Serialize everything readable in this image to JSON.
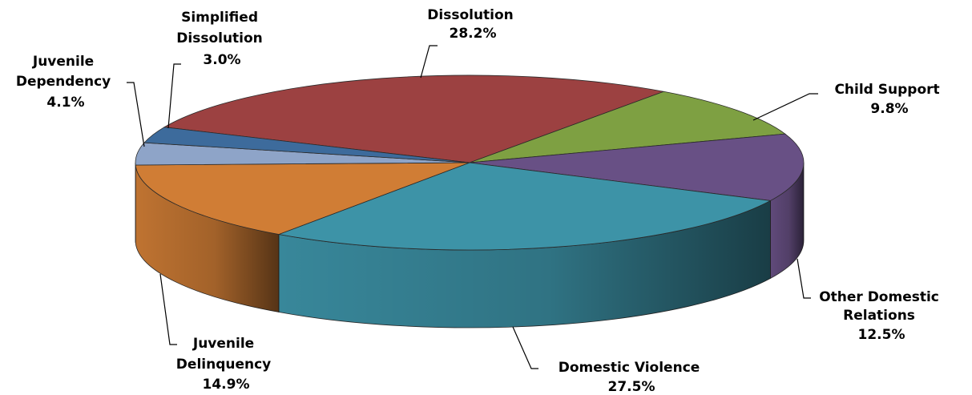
{
  "chart_data": {
    "type": "pie",
    "style": "3d",
    "title": "",
    "legend": "none",
    "slices": [
      {
        "label": "Dissolution",
        "value": 28.2,
        "value_label": "28.2%",
        "color": "#9c4141"
      },
      {
        "label": "Child Support",
        "value": 9.8,
        "value_label": "9.8%",
        "color": "#7ea042"
      },
      {
        "label": "Other Domestic Relations",
        "value": 12.5,
        "value_label": "12.5%",
        "color": "#685085"
      },
      {
        "label": "Domestic Violence",
        "value": 27.5,
        "value_label": "27.5%",
        "color": "#3d93a7"
      },
      {
        "label": "Juvenile Delinquency",
        "value": 14.9,
        "value_label": "14.9%",
        "color": "#d07d35"
      },
      {
        "label": "Juvenile Dependency",
        "value": 4.1,
        "value_label": "4.1%",
        "color": "#8ea4c8"
      },
      {
        "label": "Simplified Dissolution",
        "value": 3.0,
        "value_label": "3.0%",
        "color": "#3d6b9c"
      }
    ]
  }
}
